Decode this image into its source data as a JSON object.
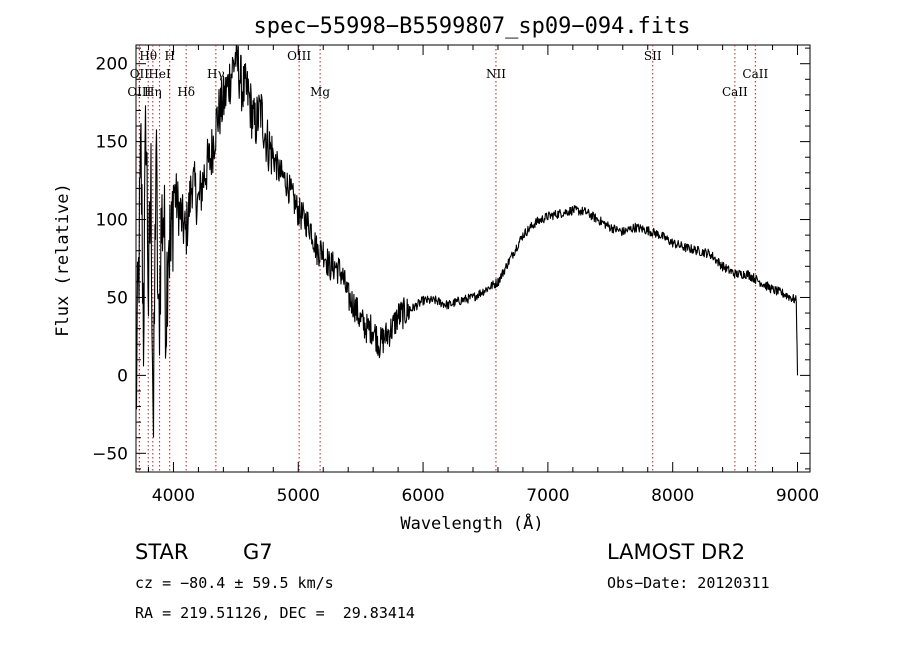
{
  "chart_data": {
    "type": "line",
    "title": "spec−55998−B5599807_sp09−094.fits",
    "xlabel": "Wavelength (Å)",
    "ylabel": "Flux (relative)",
    "xlim": [
      3700,
      9100
    ],
    "ylim": [
      -62,
      212
    ],
    "xticks": [
      4000,
      5000,
      6000,
      7000,
      8000,
      9000
    ],
    "yticks": [
      -50,
      0,
      50,
      100,
      150,
      200
    ],
    "ytick_labels": [
      "−50",
      "0",
      "50",
      "100",
      "150",
      "200"
    ],
    "grid": false,
    "series": [
      {
        "color": "#000000",
        "x": [
          3700,
          3720,
          3740,
          3760,
          3780,
          3800,
          3820,
          3840,
          3860,
          3880,
          3900,
          3920,
          3940,
          3960,
          3980,
          4000,
          4050,
          4100,
          4150,
          4200,
          4250,
          4300,
          4350,
          4400,
          4450,
          4500,
          4550,
          4600,
          4650,
          4700,
          4750,
          4800,
          4850,
          4900,
          4950,
          5000,
          5050,
          5100,
          5150,
          5200,
          5250,
          5300,
          5350,
          5400,
          5450,
          5500,
          5550,
          5600,
          5650,
          5700,
          5750,
          5800,
          5850,
          5900,
          5950,
          6000,
          6100,
          6200,
          6300,
          6400,
          6500,
          6600,
          6700,
          6800,
          6900,
          7000,
          7100,
          7200,
          7300,
          7400,
          7500,
          7600,
          7700,
          7800,
          7900,
          8000,
          8100,
          8200,
          8300,
          8400,
          8500,
          8600,
          8700,
          8800,
          8900,
          8990,
          9000
        ],
        "y": [
          -20,
          60,
          140,
          30,
          170,
          50,
          120,
          -40,
          150,
          20,
          90,
          110,
          40,
          100,
          70,
          120,
          105,
          90,
          125,
          110,
          130,
          140,
          165,
          175,
          190,
          205,
          185,
          180,
          160,
          170,
          150,
          140,
          130,
          125,
          115,
          105,
          100,
          95,
          80,
          80,
          70,
          70,
          65,
          50,
          45,
          35,
          30,
          30,
          20,
          25,
          30,
          38,
          40,
          42,
          45,
          48,
          48,
          45,
          48,
          50,
          55,
          60,
          75,
          90,
          98,
          102,
          104,
          106,
          105,
          100,
          95,
          92,
          95,
          93,
          90,
          85,
          82,
          80,
          78,
          70,
          65,
          65,
          60,
          55,
          52,
          48,
          0
        ]
      }
    ],
    "line_markers": [
      {
        "name": "Hθ",
        "x": 3798,
        "row": 0
      },
      {
        "name": "H",
        "x": 3970,
        "row": 0
      },
      {
        "name": "OIII",
        "x": 5007,
        "row": 0
      },
      {
        "name": "NII",
        "x": 6584,
        "row": 1
      },
      {
        "name": "SII",
        "x": 7840,
        "row": 0
      },
      {
        "name": "CaII",
        "x": 8662,
        "row": 1
      },
      {
        "name": "OII",
        "x": 3727,
        "row": 1
      },
      {
        "name": "HeI",
        "x": 3889,
        "row": 1
      },
      {
        "name": "Hγ",
        "x": 4340,
        "row": 1
      },
      {
        "name": "OIII",
        "x": 3727,
        "row": 2
      },
      {
        "name": "Hη",
        "x": 3835,
        "row": 2
      },
      {
        "name": "Hδ",
        "x": 4102,
        "row": 2
      },
      {
        "name": "Mg",
        "x": 5175,
        "row": 2
      },
      {
        "name": "CaII",
        "x": 8498,
        "row": 2
      }
    ],
    "marker_color": "#b22222"
  },
  "info": {
    "object_class": "STAR",
    "subclass": "G7",
    "survey": "LAMOST DR2",
    "cz": "cz = −80.4 ± 59.5 km/s",
    "obs_date": "Obs−Date: 20120311",
    "radec": "RA = 219.51126, DEC =  29.83414"
  }
}
